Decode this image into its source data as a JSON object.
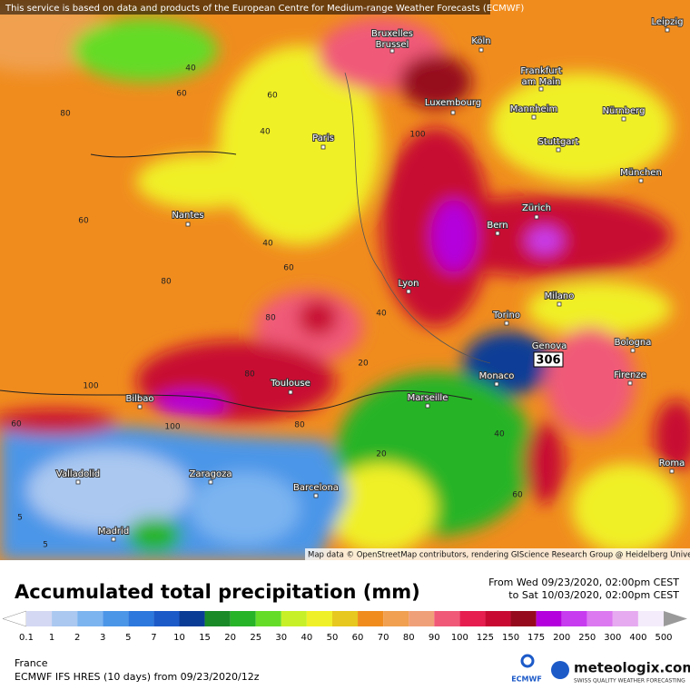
{
  "notice": "This service is based on data and products of the European Centre for Medium-range Weather Forecasts (ECMWF)",
  "attribution": "Map data © OpenStreetMap contributors, rendering GIScience Research Group @ Heidelberg University",
  "cities": [
    {
      "lines": [
        "Bruxelles",
        "Brussel"
      ]
    },
    {
      "lines": [
        "Köln"
      ]
    },
    {
      "lines": [
        "Leipzig"
      ]
    },
    {
      "lines": [
        "Frankfurt",
        "am Main"
      ]
    },
    {
      "lines": [
        "Luxembourg"
      ]
    },
    {
      "lines": [
        "Mannheim"
      ]
    },
    {
      "lines": [
        "Nürnberg"
      ]
    },
    {
      "lines": [
        "Paris"
      ]
    },
    {
      "lines": [
        "Stuttgart"
      ]
    },
    {
      "lines": [
        "München"
      ]
    },
    {
      "lines": [
        "Nantes"
      ]
    },
    {
      "lines": [
        "Zürich"
      ]
    },
    {
      "lines": [
        "Bern"
      ]
    },
    {
      "lines": [
        "Lyon"
      ]
    },
    {
      "lines": [
        "Milano"
      ]
    },
    {
      "lines": [
        "Torino"
      ]
    },
    {
      "lines": [
        "Bologna"
      ]
    },
    {
      "lines": [
        "Genova"
      ]
    },
    {
      "lines": [
        "Monaco"
      ]
    },
    {
      "lines": [
        "Firenze"
      ]
    },
    {
      "lines": [
        "Toulouse"
      ]
    },
    {
      "lines": [
        "Marseille"
      ]
    },
    {
      "lines": [
        "Bilbao"
      ]
    },
    {
      "lines": [
        "Roma"
      ]
    },
    {
      "lines": [
        "Valladolid"
      ]
    },
    {
      "lines": [
        "Zaragoza"
      ]
    },
    {
      "lines": [
        "Barcelona"
      ]
    },
    {
      "lines": [
        "Madrid"
      ]
    }
  ],
  "peak_value": 306,
  "contour_labels": [
    40,
    60,
    80,
    60,
    40,
    60,
    80,
    40,
    60,
    100,
    80,
    100,
    80,
    60,
    80,
    100,
    40,
    20,
    20,
    40,
    60,
    5,
    5
  ],
  "title": "Accumulated total precipitation (mm)",
  "period": [
    "From Wed 09/23/2020, 02:00pm CEST",
    "to Sat 10/03/2020, 02:00pm CEST"
  ],
  "region": "France",
  "model": "ECMWF IFS HRES (10 days) from 09/23/2020/12z",
  "ecmwf_logo": "ECMWF",
  "brand": "meteologix.com",
  "tagline": "SWISS QUALITY WEATHER FORECASTING",
  "scale": {
    "levels": [
      0.1,
      1,
      2,
      3,
      5,
      7,
      10,
      15,
      20,
      25,
      30,
      40,
      50,
      60,
      70,
      80,
      90,
      100,
      125,
      150,
      175,
      200,
      250,
      300,
      400,
      500
    ],
    "colors": [
      "#ffffff",
      "#d4d8f2",
      "#aac8f0",
      "#7cb4f0",
      "#4c96e8",
      "#2c78dc",
      "#1c5ac8",
      "#0a3c96",
      "#1a8a28",
      "#28b428",
      "#64dc28",
      "#c8f028",
      "#f0f028",
      "#e6c81e",
      "#f08c1e",
      "#f0a050",
      "#f0a078",
      "#f05a78",
      "#e61e50",
      "#c80a32",
      "#960a1e",
      "#b400dc",
      "#c83cf0",
      "#dc78f0",
      "#e6aaf0",
      "#f4ecfa",
      "#cccccc",
      "#9a9a9a"
    ]
  }
}
